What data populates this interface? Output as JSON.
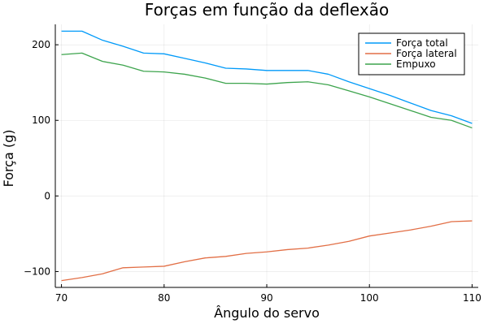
{
  "chart_data": {
    "type": "line",
    "title": "Forças em função da deflexão",
    "xlabel": "Ângulo do servo",
    "ylabel": "Força (g)",
    "xlim": [
      69.4,
      110.6
    ],
    "ylim": [
      -121,
      227
    ],
    "xticks": [
      70,
      80,
      90,
      100,
      110
    ],
    "yticks": [
      -100,
      0,
      100,
      200
    ],
    "grid": true,
    "legend_position": "top-right",
    "x": [
      70,
      72,
      74,
      76,
      78,
      80,
      82,
      84,
      86,
      88,
      90,
      92,
      94,
      96,
      98,
      100,
      102,
      104,
      106,
      108,
      110
    ],
    "series": [
      {
        "name": "Força total",
        "color": "#009af9",
        "values": [
          218,
          218,
          206,
          198,
          189,
          188,
          182,
          176,
          169,
          168,
          166,
          166,
          166,
          161,
          151,
          142,
          133,
          123,
          113,
          106,
          96
        ]
      },
      {
        "name": "Força lateral",
        "color": "#e26f46",
        "values": [
          -112,
          -108,
          -103,
          -95,
          -94,
          -93,
          -87,
          -82,
          -80,
          -76,
          -74,
          -71,
          -69,
          -65,
          -60,
          -53,
          -49,
          -45,
          -40,
          -34,
          -33
        ]
      },
      {
        "name": "Empuxo",
        "color": "#3da44d",
        "values": [
          187,
          189,
          178,
          173,
          165,
          164,
          161,
          156,
          149,
          149,
          148,
          150,
          151,
          147,
          139,
          131,
          122,
          113,
          104,
          100,
          90
        ]
      }
    ]
  }
}
